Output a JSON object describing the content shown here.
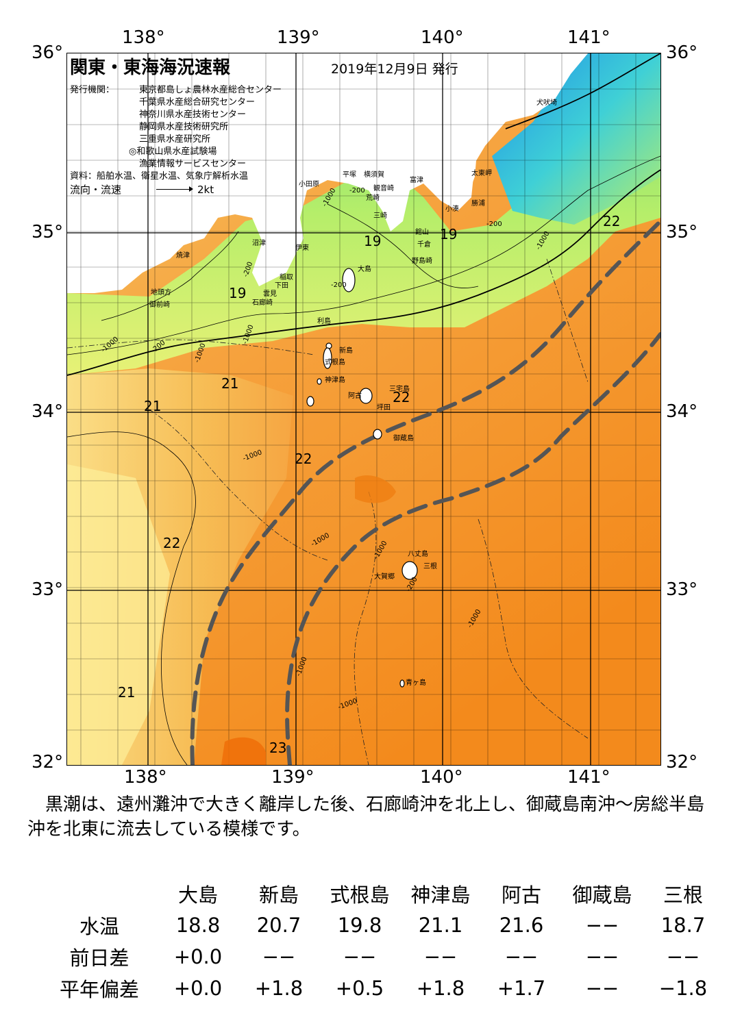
{
  "header": {
    "title": "関東・東海海況速報",
    "date": "2019年12月9日 発行",
    "publisher_label": "発行機関：",
    "publishers": [
      "東京都島しょ農林水産総合センター",
      "千葉県水産総合研究センター",
      "神奈川県水産技術センター",
      "静岡県水産技術研究所",
      "三重県水産研究所",
      "◎和歌山県水産試験場",
      "漁業情報サービスセンター"
    ],
    "source": "資料：船舶水温、衛星水温、気象庁解析水温",
    "flow_label": "流向・流速",
    "flow_scale": "2kt"
  },
  "axes": {
    "lon_top": [
      "138°",
      "139°",
      "140°",
      "141°"
    ],
    "lon_bottom": [
      "138°",
      "139°",
      "140°",
      "141°"
    ],
    "lat_left": [
      "36°",
      "35°",
      "34°",
      "33°",
      "32°"
    ],
    "lat_right": [
      "36°",
      "35°",
      "34°",
      "33°",
      "32°"
    ]
  },
  "places": [
    "犬吠埼",
    "小田原",
    "平塚",
    "横須賀",
    "観音崎",
    "富津",
    "太東岬",
    "荒崎",
    "勝浦",
    "三崎",
    "小湊",
    "館山",
    "千倉",
    "焼津",
    "沼津",
    "伊東",
    "野島崎",
    "大島",
    "稲取",
    "雲見",
    "下田",
    "石廊崎",
    "地頭方",
    "御前崎",
    "利島",
    "新島",
    "式根島",
    "神津島",
    "三宅島",
    "阿古",
    "坪田",
    "御蔵島",
    "八丈島",
    "三根",
    "大賀郷",
    "青ヶ島"
  ],
  "temps": [
    "22",
    "19",
    "19",
    "19",
    "21",
    "21",
    "22",
    "22",
    "22",
    "21",
    "23"
  ],
  "depths": [
    "-1000",
    "-200",
    "-200",
    "-1000",
    "-200",
    "-1000",
    "-200",
    "-1000",
    "-200",
    "-1000",
    "-1000",
    "-1000",
    "-1000",
    "-1000",
    "-200",
    "-1000",
    "-1000"
  ],
  "description": "黒潮は、遠州灘沖で大きく離岸した後、石廊崎沖を北上し、御蔵島南沖～房総半島沖を北東に流去している模様です。",
  "table": {
    "columns": [
      "大島",
      "新島",
      "式根島",
      "神津島",
      "阿古",
      "御蔵島",
      "三根"
    ],
    "rows": [
      {
        "label": "水温",
        "values": [
          "18.8",
          "20.7",
          "19.8",
          "21.1",
          "21.6",
          "−−",
          "18.7"
        ]
      },
      {
        "label": "前日差",
        "values": [
          "+0.0",
          "−−",
          "−−",
          "−−",
          "−−",
          "−−",
          "−−"
        ]
      },
      {
        "label": "平年偏差",
        "values": [
          "+0.0",
          "+1.8",
          "+0.5",
          "+1.8",
          "+1.7",
          "−−",
          "−1.8"
        ]
      }
    ]
  }
}
